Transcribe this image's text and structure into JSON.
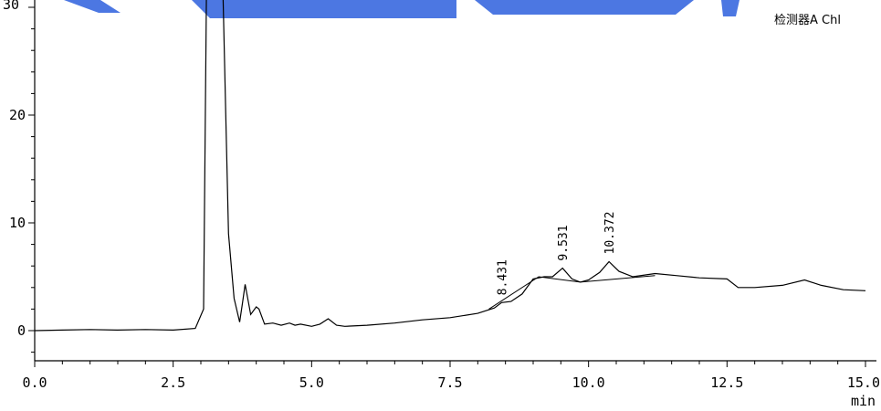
{
  "detector_label": "检测器A Chl",
  "chart_data": {
    "type": "line",
    "title": "",
    "xlabel": "min",
    "ylabel": "",
    "xlim": [
      0.0,
      15.0
    ],
    "ylim": [
      -3,
      30
    ],
    "x_ticks": [
      "0.0",
      "2.5",
      "5.0",
      "7.5",
      "10.0",
      "12.5",
      "15.0"
    ],
    "y_ticks": [
      "0",
      "10",
      "20"
    ],
    "grid": false,
    "line_color": "#000000",
    "series": [
      {
        "x": [
          0.0,
          0.5,
          1.0,
          1.5,
          2.0,
          2.5,
          2.9,
          3.05,
          3.1,
          3.15,
          3.2,
          3.3,
          3.4,
          3.45,
          3.5,
          3.6,
          3.7,
          3.75,
          3.8,
          3.9,
          4.0,
          4.05,
          4.15,
          4.3,
          4.45,
          4.6,
          4.7,
          4.8,
          5.0,
          5.15,
          5.3,
          5.45,
          5.6,
          6.0,
          6.5,
          7.0,
          7.5,
          8.0,
          8.3,
          8.43,
          8.6,
          8.8,
          9.0,
          9.2,
          9.35,
          9.53,
          9.7,
          9.85,
          10.0,
          10.2,
          10.37,
          10.55,
          10.8,
          11.2,
          11.6,
          12.0,
          12.5,
          12.7,
          13.0,
          13.5,
          13.9,
          14.2,
          14.6,
          15.0
        ],
        "y": [
          0.0,
          0.05,
          0.1,
          0.05,
          0.1,
          0.05,
          0.2,
          2.0,
          35,
          35,
          35,
          35,
          35,
          20,
          9,
          3,
          0.8,
          2.5,
          4.3,
          1.5,
          2.2,
          2.0,
          0.6,
          0.7,
          0.5,
          0.7,
          0.5,
          0.6,
          0.4,
          0.6,
          1.1,
          0.5,
          0.4,
          0.5,
          0.7,
          1.0,
          1.2,
          1.6,
          2.1,
          2.6,
          2.7,
          3.4,
          4.8,
          5.0,
          5.0,
          5.8,
          4.8,
          4.5,
          4.7,
          5.4,
          6.4,
          5.5,
          5.0,
          5.3,
          5.1,
          4.9,
          4.8,
          4.0,
          4.0,
          4.2,
          4.7,
          4.2,
          3.8,
          3.7
        ]
      }
    ],
    "baseline": {
      "x": [
        8.2,
        9.1,
        9.85,
        11.2
      ],
      "y": [
        2.0,
        5.0,
        4.5,
        5.1
      ]
    },
    "peak_labels": [
      {
        "x": 8.431,
        "y": 2.6,
        "label": "8.431"
      },
      {
        "x": 9.531,
        "y": 5.8,
        "label": "9.531"
      },
      {
        "x": 10.372,
        "y": 6.4,
        "label": "10.372"
      }
    ],
    "annotations": []
  }
}
